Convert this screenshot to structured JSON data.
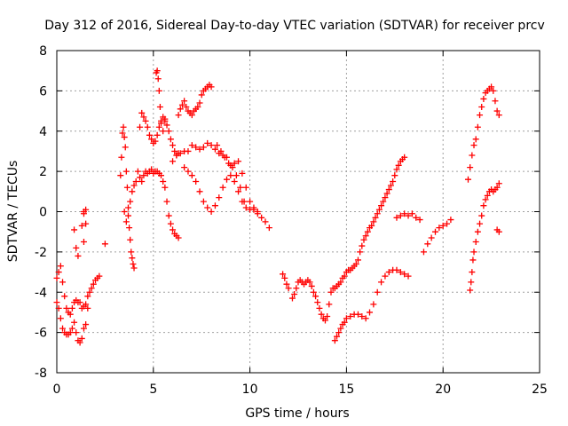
{
  "chart_data": {
    "type": "scatter",
    "title": "Day 312 of 2016, Sidereal Day-to-day VTEC variation (SDTVAR) for receiver prcv",
    "xlabel": "GPS time / hours",
    "ylabel": "SDTVAR / TECUs",
    "xlim": [
      0,
      25
    ],
    "ylim": [
      -8,
      8
    ],
    "x_ticks": [
      "0",
      "5",
      "10",
      "15",
      "20",
      "25"
    ],
    "y_ticks": [
      "-8",
      "-6",
      "-4",
      "-2",
      "0",
      "2",
      "4",
      "6",
      "8"
    ],
    "grid": true,
    "marker": "plus",
    "color": "#ff0000",
    "series": [
      {
        "x": [
          0.0,
          0.1,
          0.2,
          0.3,
          0.4,
          0.5,
          0.6,
          0.7,
          0.8,
          0.9,
          1.0,
          1.1,
          1.2,
          1.3,
          1.4,
          1.5,
          1.6,
          1.7,
          1.8,
          1.9,
          2.0,
          2.1,
          2.2
        ],
        "y": [
          -3.3,
          -3.0,
          -2.7,
          -3.5,
          -4.2,
          -4.8,
          -5.0,
          -5.1,
          -4.8,
          -4.5,
          -4.4,
          -4.5,
          -4.5,
          -4.8,
          -4.7,
          -4.6,
          -4.2,
          -4.0,
          -3.8,
          -3.6,
          -3.4,
          -3.3,
          -3.2
        ]
      },
      {
        "x": [
          0.0,
          0.1,
          0.2,
          0.3,
          0.4,
          0.5,
          0.6,
          0.7,
          0.8,
          0.9,
          1.0,
          1.1,
          1.2,
          1.3,
          1.4,
          1.5,
          1.6
        ],
        "y": [
          -4.5,
          -4.8,
          -5.3,
          -5.8,
          -6.0,
          -6.1,
          -6.1,
          -6.0,
          -5.8,
          -5.5,
          -6.0,
          -6.4,
          -6.5,
          -6.3,
          -5.8,
          -5.6,
          -4.8
        ]
      },
      {
        "x": [
          0.9,
          1.0,
          1.1,
          1.3,
          1.4,
          1.4,
          1.5,
          1.5,
          1.4
        ],
        "y": [
          -0.9,
          -1.8,
          -2.2,
          -0.7,
          -0.1,
          0.0,
          0.1,
          -0.6,
          -1.5
        ]
      },
      {
        "x": [
          2.5
        ],
        "y": [
          -1.6
        ]
      },
      {
        "x": [
          3.3,
          3.35,
          3.4,
          3.45,
          3.5,
          3.55,
          3.6,
          3.65,
          3.7,
          3.75,
          3.8,
          3.85,
          3.9,
          3.95,
          4.0
        ],
        "y": [
          1.8,
          2.7,
          3.9,
          4.2,
          3.7,
          3.2,
          2.0,
          1.2,
          0.2,
          -0.8,
          -1.4,
          -2.0,
          -2.3,
          -2.6,
          -2.8
        ]
      },
      {
        "x": [
          3.5,
          3.6,
          3.7,
          3.8,
          3.9,
          4.0,
          4.1,
          4.2,
          4.3,
          4.4,
          4.5,
          4.6,
          4.7,
          4.8,
          4.9,
          5.0,
          5.1,
          5.2,
          5.3,
          5.4,
          5.5,
          5.6,
          5.7,
          5.8,
          5.9,
          6.0,
          6.1,
          6.2,
          6.3
        ],
        "y": [
          0.0,
          -0.5,
          -0.2,
          0.5,
          1.0,
          1.3,
          1.5,
          2.0,
          1.7,
          1.5,
          1.8,
          2.0,
          1.9,
          2.0,
          2.1,
          1.9,
          2.0,
          2.0,
          1.9,
          1.8,
          1.5,
          1.2,
          0.5,
          -0.2,
          -0.6,
          -0.9,
          -1.1,
          -1.2,
          -1.3
        ]
      },
      {
        "x": [
          4.3,
          4.4,
          4.5,
          4.6,
          4.7,
          4.8,
          4.9,
          5.0,
          5.1,
          5.2,
          5.3,
          5.4,
          5.5,
          5.6,
          5.7,
          5.8,
          5.9,
          6.0,
          6.1,
          6.2,
          6.3
        ],
        "y": [
          4.2,
          4.9,
          4.7,
          4.5,
          4.2,
          3.8,
          3.6,
          3.4,
          3.5,
          3.8,
          4.2,
          4.5,
          4.7,
          4.6,
          4.3,
          4.0,
          3.6,
          3.3,
          3.0,
          2.8,
          2.9
        ]
      },
      {
        "x": [
          5.15,
          5.2,
          5.25,
          5.3,
          5.35,
          5.4,
          5.5,
          5.6
        ],
        "y": [
          6.9,
          7.0,
          6.6,
          6.0,
          5.2,
          4.4,
          4.0,
          4.5
        ]
      },
      {
        "x": [
          6.3,
          6.4,
          6.5,
          6.6,
          6.7,
          6.8,
          6.9,
          7.0,
          7.1,
          7.2,
          7.3,
          7.4,
          7.5,
          7.6,
          7.7,
          7.8,
          7.9,
          8.0
        ],
        "y": [
          4.8,
          5.1,
          5.3,
          5.5,
          5.2,
          5.0,
          4.9,
          4.8,
          5.0,
          5.1,
          5.2,
          5.4,
          5.8,
          6.0,
          6.1,
          6.2,
          6.3,
          6.2
        ]
      },
      {
        "x": [
          6.0,
          6.2,
          6.4,
          6.6,
          6.8,
          7.0,
          7.2,
          7.4,
          7.6,
          7.8,
          8.0,
          8.2,
          8.4,
          8.6,
          8.8,
          9.0,
          9.2,
          9.4,
          9.6,
          9.8,
          10.0,
          10.2,
          10.4,
          10.6,
          10.8,
          11.0
        ],
        "y": [
          2.5,
          2.8,
          2.9,
          3.0,
          3.0,
          3.3,
          3.2,
          3.1,
          3.2,
          3.4,
          3.3,
          3.1,
          2.9,
          2.8,
          2.7,
          2.3,
          2.4,
          2.5,
          1.9,
          1.2,
          0.5,
          0.2,
          -0.1,
          -0.3,
          -0.5,
          -0.8
        ]
      },
      {
        "x": [
          6.6,
          6.8,
          7.0,
          7.2,
          7.4,
          7.6,
          7.8,
          8.0,
          8.2,
          8.4,
          8.6,
          8.8,
          9.0,
          9.2,
          9.4,
          9.6,
          9.8,
          10.0,
          10.2,
          10.4
        ],
        "y": [
          2.2,
          2.0,
          1.8,
          1.5,
          1.0,
          0.5,
          0.2,
          0.0,
          0.3,
          0.7,
          1.2,
          1.6,
          1.8,
          1.5,
          1.0,
          0.5,
          0.2,
          0.1,
          0.1,
          0.0
        ]
      },
      {
        "x": [
          8.3,
          8.5,
          8.7,
          8.9,
          9.1,
          9.3,
          9.5,
          9.7
        ],
        "y": [
          3.3,
          3.0,
          2.7,
          2.4,
          2.2,
          1.8,
          1.2,
          0.5
        ]
      },
      {
        "x": [
          11.7,
          11.8,
          11.9,
          12.0
        ],
        "y": [
          -3.1,
          -3.3,
          -3.6,
          -3.8
        ]
      },
      {
        "x": [
          12.2,
          12.3,
          12.4,
          12.5,
          12.6,
          12.7,
          12.8,
          12.9,
          13.0,
          13.1,
          13.2,
          13.3,
          13.4,
          13.5,
          13.6,
          13.7,
          13.8,
          13.9,
          14.0,
          14.1,
          14.2,
          14.3,
          14.4,
          14.5,
          14.6,
          14.7,
          14.8,
          14.9,
          15.0,
          15.1,
          15.2,
          15.3,
          15.4,
          15.5,
          15.6,
          15.7,
          15.8,
          15.9,
          16.0,
          16.1,
          16.2,
          16.3,
          16.4,
          16.5,
          16.6,
          16.7,
          16.8,
          16.9,
          17.0,
          17.1,
          17.2,
          17.3,
          17.4,
          17.5,
          17.6,
          17.7,
          17.8,
          17.9,
          18.0
        ],
        "y": [
          -4.3,
          -4.1,
          -3.8,
          -3.5,
          -3.4,
          -3.5,
          -3.6,
          -3.5,
          -3.4,
          -3.5,
          -3.7,
          -4.0,
          -4.2,
          -4.5,
          -4.8,
          -5.1,
          -5.3,
          -5.4,
          -5.2,
          -4.6,
          -4.0,
          -3.8,
          -3.8,
          -3.7,
          -3.6,
          -3.5,
          -3.3,
          -3.2,
          -3.0,
          -2.9,
          -2.9,
          -2.8,
          -2.7,
          -2.6,
          -2.4,
          -2.0,
          -1.7,
          -1.4,
          -1.2,
          -1.0,
          -0.8,
          -0.7,
          -0.5,
          -0.3,
          -0.1,
          0.1,
          0.3,
          0.5,
          0.7,
          0.9,
          1.1,
          1.3,
          1.5,
          1.8,
          2.1,
          2.3,
          2.5,
          2.6,
          2.7
        ]
      },
      {
        "x": [
          14.4,
          14.5,
          14.6,
          14.7,
          14.8,
          14.9,
          15.0,
          15.2,
          15.4,
          15.6,
          15.8,
          16.0,
          16.2,
          16.4,
          16.6,
          16.8,
          17.0,
          17.2,
          17.4,
          17.6,
          17.8,
          18.0,
          18.2
        ],
        "y": [
          -6.4,
          -6.2,
          -6.0,
          -5.8,
          -5.6,
          -5.5,
          -5.3,
          -5.2,
          -5.1,
          -5.1,
          -5.2,
          -5.3,
          -5.0,
          -4.6,
          -4.0,
          -3.5,
          -3.2,
          -3.0,
          -2.9,
          -2.9,
          -3.0,
          -3.1,
          -3.2
        ]
      },
      {
        "x": [
          17.6,
          17.8,
          18.0,
          18.2,
          18.4,
          18.6,
          18.8,
          19.0,
          19.2,
          19.4,
          19.6,
          19.8,
          20.0,
          20.2,
          20.4
        ],
        "y": [
          -0.3,
          -0.2,
          -0.1,
          -0.2,
          -0.1,
          -0.3,
          -0.4,
          -2.0,
          -1.6,
          -1.3,
          -1.0,
          -0.8,
          -0.7,
          -0.6,
          -0.4
        ]
      },
      {
        "x": [
          21.3,
          21.4,
          21.5,
          21.6,
          21.7,
          21.8,
          21.9,
          22.0,
          22.1,
          22.2,
          22.3,
          22.4,
          22.5,
          22.6,
          22.7,
          22.8,
          22.9
        ],
        "y": [
          1.6,
          2.2,
          2.8,
          3.3,
          3.6,
          4.2,
          4.8,
          5.2,
          5.6,
          5.9,
          6.0,
          6.1,
          6.2,
          6.0,
          5.5,
          5.0,
          4.8
        ]
      },
      {
        "x": [
          21.4,
          21.45,
          21.5,
          21.55,
          21.6,
          21.7,
          21.8,
          21.9,
          22.0,
          22.1,
          22.2,
          22.3,
          22.4,
          22.5,
          22.6,
          22.7,
          22.8,
          22.9
        ],
        "y": [
          -3.9,
          -3.5,
          -3.0,
          -2.4,
          -2.0,
          -1.5,
          -1.0,
          -0.6,
          -0.2,
          0.3,
          0.6,
          0.8,
          1.0,
          1.1,
          1.0,
          1.1,
          1.2,
          1.4
        ]
      },
      {
        "x": [
          22.8,
          22.9
        ],
        "y": [
          -0.9,
          -1.0
        ]
      }
    ]
  }
}
